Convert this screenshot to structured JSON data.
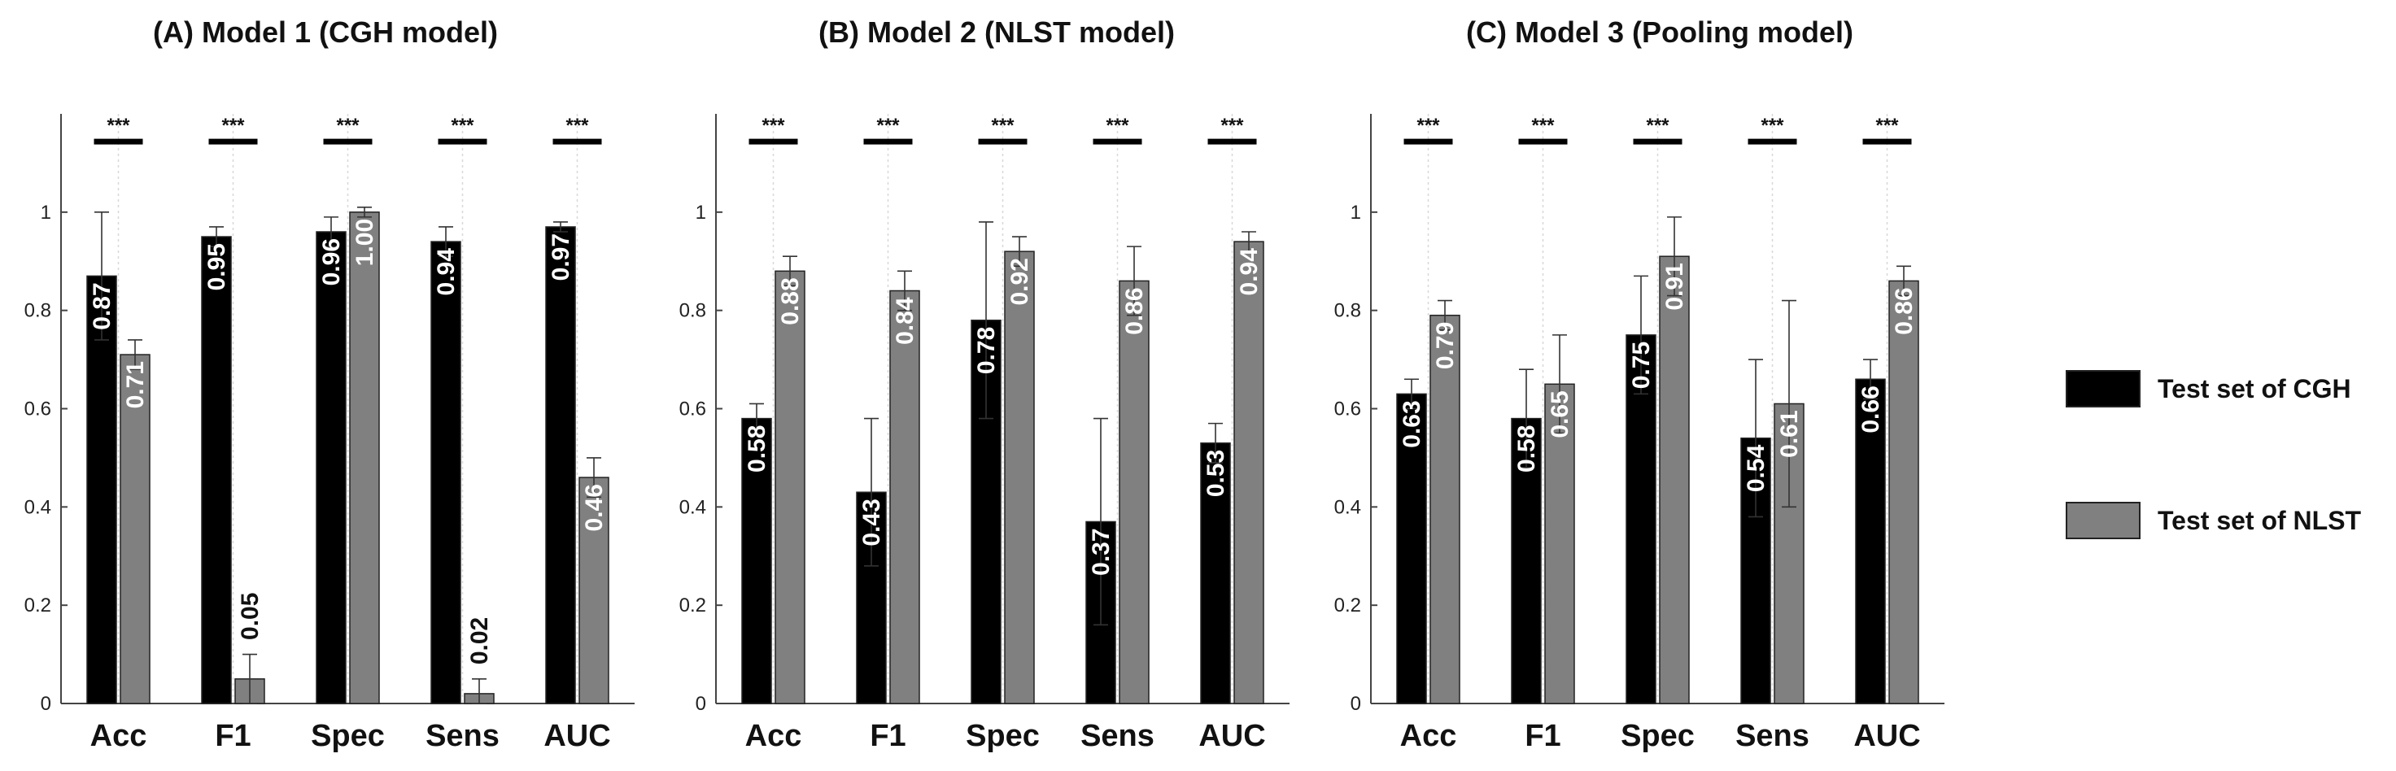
{
  "chart_data": [
    {
      "type": "bar",
      "title": "(A) Model 1 (CGH model)",
      "categories": [
        "Acc",
        "F1",
        "Spec",
        "Sens",
        "AUC"
      ],
      "ylim": [
        0,
        1.2
      ],
      "yticks": [
        0,
        0.2,
        0.4,
        0.6,
        0.8,
        1
      ],
      "ytick_labels": [
        "0",
        "0.2",
        "0.4",
        "0.6",
        "0.8",
        "1"
      ],
      "series": [
        {
          "name": "Test set of CGH",
          "values": [
            0.87,
            0.95,
            0.96,
            0.94,
            0.97
          ],
          "labels": [
            "0.87",
            "0.95",
            "0.96",
            "0.94",
            "0.97"
          ],
          "error": [
            0.13,
            0.02,
            0.03,
            0.03,
            0.01
          ]
        },
        {
          "name": "Test set of NLST",
          "values": [
            0.71,
            0.05,
            1.0,
            0.02,
            0.46
          ],
          "labels": [
            "0.71",
            "0.05",
            "1.00",
            "0.02",
            "0.46"
          ],
          "error": [
            0.03,
            0.05,
            0.01,
            0.03,
            0.04
          ]
        }
      ],
      "significance": [
        "***",
        "***",
        "***",
        "***",
        "***"
      ]
    },
    {
      "type": "bar",
      "title": "(B) Model 2 (NLST model)",
      "categories": [
        "Acc",
        "F1",
        "Spec",
        "Sens",
        "AUC"
      ],
      "ylim": [
        0,
        1.2
      ],
      "yticks": [
        0,
        0.2,
        0.4,
        0.6,
        0.8,
        1
      ],
      "ytick_labels": [
        "0",
        "0.2",
        "0.4",
        "0.6",
        "0.8",
        "1"
      ],
      "series": [
        {
          "name": "Test set of CGH",
          "values": [
            0.58,
            0.43,
            0.78,
            0.37,
            0.53
          ],
          "labels": [
            "0.58",
            "0.43",
            "0.78",
            "0.37",
            "0.53"
          ],
          "error": [
            0.03,
            0.15,
            0.2,
            0.21,
            0.04
          ]
        },
        {
          "name": "Test set of NLST",
          "values": [
            0.88,
            0.84,
            0.92,
            0.86,
            0.94
          ],
          "labels": [
            "0.88",
            "0.84",
            "0.92",
            "0.86",
            "0.94"
          ],
          "error": [
            0.03,
            0.04,
            0.03,
            0.07,
            0.02
          ]
        }
      ],
      "significance": [
        "***",
        "***",
        "***",
        "***",
        "***"
      ]
    },
    {
      "type": "bar",
      "title": "(C) Model 3 (Pooling model)",
      "categories": [
        "Acc",
        "F1",
        "Spec",
        "Sens",
        "AUC"
      ],
      "ylim": [
        0,
        1.2
      ],
      "yticks": [
        0,
        0.2,
        0.4,
        0.6,
        0.8,
        1
      ],
      "ytick_labels": [
        "0",
        "0.2",
        "0.4",
        "0.6",
        "0.8",
        "1"
      ],
      "series": [
        {
          "name": "Test set of CGH",
          "values": [
            0.63,
            0.58,
            0.75,
            0.54,
            0.66
          ],
          "labels": [
            "0.63",
            "0.58",
            "0.75",
            "0.54",
            "0.66"
          ],
          "error": [
            0.03,
            0.1,
            0.12,
            0.16,
            0.04
          ]
        },
        {
          "name": "Test set of NLST",
          "values": [
            0.79,
            0.65,
            0.91,
            0.61,
            0.86
          ],
          "labels": [
            "0.79",
            "0.65",
            "0.91",
            "0.61",
            "0.86"
          ],
          "error": [
            0.03,
            0.1,
            0.08,
            0.21,
            0.03
          ]
        }
      ],
      "significance": [
        "***",
        "***",
        "***",
        "***",
        "***"
      ]
    }
  ],
  "legend": {
    "entries": [
      {
        "label": "Test set of CGH",
        "color": "#000000"
      },
      {
        "label": "Test set of NLST",
        "color": "#808080"
      }
    ]
  },
  "colors": {
    "cgh_bar": "#000000",
    "nlst_bar": "#808080",
    "axis": "#444444",
    "grid": "#d8d8d8",
    "cgh_label": "#ffffff",
    "nlst_label": "#ffffff",
    "outside_label": "#111111"
  }
}
